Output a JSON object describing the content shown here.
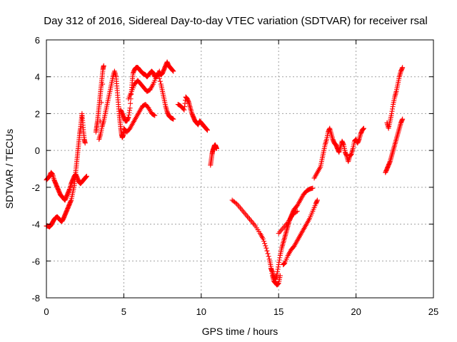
{
  "chart_data": {
    "type": "scatter",
    "title": "Day 312 of 2016, Sidereal Day-to-day VTEC variation (SDTVAR) for receiver rsal",
    "xlabel": "GPS time / hours",
    "ylabel": "SDTVAR / TECUs",
    "xlim": [
      0,
      25
    ],
    "ylim": [
      -8,
      6
    ],
    "xticks": [
      0,
      5,
      10,
      15,
      20,
      25
    ],
    "yticks": [
      -8,
      -6,
      -4,
      -2,
      0,
      2,
      4,
      6
    ],
    "grid": true,
    "marker": "plus",
    "color": "#ff0000",
    "series": [
      {
        "points": [
          [
            0.0,
            -1.6
          ],
          [
            0.1,
            -1.5
          ],
          [
            0.2,
            -1.4
          ],
          [
            0.3,
            -1.2
          ],
          [
            0.4,
            -1.3
          ],
          [
            0.5,
            -1.6
          ],
          [
            0.6,
            -1.8
          ],
          [
            0.7,
            -2.0
          ],
          [
            0.8,
            -2.2
          ],
          [
            0.9,
            -2.4
          ],
          [
            1.0,
            -2.5
          ],
          [
            1.1,
            -2.6
          ],
          [
            1.2,
            -2.7
          ],
          [
            1.3,
            -2.5
          ],
          [
            1.4,
            -2.3
          ],
          [
            1.5,
            -2.1
          ],
          [
            1.6,
            -1.8
          ],
          [
            1.7,
            -1.6
          ],
          [
            1.8,
            -1.4
          ],
          [
            1.9,
            -1.3
          ],
          [
            2.0,
            -1.5
          ],
          [
            2.1,
            -1.7
          ],
          [
            2.2,
            -1.8
          ],
          [
            2.3,
            -1.7
          ],
          [
            2.4,
            -1.6
          ],
          [
            2.5,
            -1.5
          ],
          [
            2.6,
            -1.4
          ]
        ]
      },
      {
        "points": [
          [
            0.0,
            -4.1
          ],
          [
            0.1,
            -4.1
          ],
          [
            0.2,
            -4.15
          ],
          [
            0.3,
            -4.05
          ],
          [
            0.4,
            -3.9
          ],
          [
            0.5,
            -3.75
          ],
          [
            0.6,
            -3.65
          ],
          [
            0.7,
            -3.6
          ],
          [
            0.8,
            -3.7
          ],
          [
            0.9,
            -3.8
          ],
          [
            1.0,
            -3.85
          ],
          [
            1.1,
            -3.7
          ],
          [
            1.2,
            -3.5
          ],
          [
            1.3,
            -3.3
          ],
          [
            1.4,
            -3.1
          ],
          [
            1.5,
            -2.9
          ],
          [
            1.6,
            -2.7
          ],
          [
            1.7,
            -2.3
          ],
          [
            1.8,
            -1.9
          ],
          [
            1.85,
            -1.5
          ],
          [
            1.9,
            -1.1
          ],
          [
            1.95,
            -0.7
          ],
          [
            2.0,
            -0.3
          ],
          [
            2.05,
            0.1
          ],
          [
            2.1,
            0.5
          ],
          [
            2.15,
            0.9
          ],
          [
            2.2,
            1.2
          ],
          [
            2.25,
            1.6
          ],
          [
            2.3,
            2.0
          ],
          [
            2.35,
            1.5
          ],
          [
            2.4,
            1.0
          ],
          [
            2.45,
            0.6
          ],
          [
            2.5,
            0.4
          ]
        ]
      },
      {
        "points": [
          [
            3.2,
            1.0
          ],
          [
            3.25,
            1.3
          ],
          [
            3.3,
            1.6
          ],
          [
            3.35,
            2.0
          ],
          [
            3.4,
            2.4
          ],
          [
            3.45,
            2.8
          ],
          [
            3.5,
            3.2
          ],
          [
            3.55,
            3.6
          ],
          [
            3.6,
            4.0
          ],
          [
            3.65,
            4.4
          ],
          [
            3.7,
            4.6
          ],
          [
            3.4,
            0.6
          ],
          [
            3.5,
            0.9
          ],
          [
            3.6,
            1.3
          ],
          [
            3.7,
            1.6
          ],
          [
            3.8,
            2.0
          ],
          [
            3.9,
            2.4
          ],
          [
            4.0,
            2.8
          ],
          [
            4.1,
            3.2
          ],
          [
            4.2,
            3.6
          ],
          [
            4.3,
            4.0
          ],
          [
            4.4,
            4.3
          ],
          [
            4.5,
            4.0
          ],
          [
            4.55,
            3.5
          ],
          [
            4.6,
            3.0
          ],
          [
            4.65,
            2.5
          ],
          [
            4.7,
            2.0
          ],
          [
            4.75,
            1.6
          ],
          [
            4.8,
            1.2
          ],
          [
            4.85,
            0.9
          ],
          [
            4.9,
            0.7
          ],
          [
            4.95,
            0.8
          ],
          [
            5.0,
            1.0
          ]
        ]
      },
      {
        "points": [
          [
            4.8,
            2.2
          ],
          [
            4.9,
            2.0
          ],
          [
            5.0,
            1.8
          ],
          [
            5.1,
            1.6
          ],
          [
            5.2,
            1.6
          ],
          [
            5.3,
            1.8
          ],
          [
            5.4,
            2.3
          ],
          [
            5.5,
            3.3
          ],
          [
            5.55,
            3.8
          ],
          [
            5.6,
            4.2
          ],
          [
            5.7,
            4.4
          ],
          [
            5.8,
            4.5
          ],
          [
            5.9,
            4.5
          ],
          [
            6.0,
            4.4
          ],
          [
            6.1,
            4.3
          ],
          [
            6.2,
            4.2
          ],
          [
            6.3,
            4.15
          ],
          [
            6.4,
            4.1
          ],
          [
            6.5,
            4.0
          ],
          [
            6.6,
            4.1
          ],
          [
            6.7,
            4.2
          ],
          [
            6.8,
            4.3
          ],
          [
            6.9,
            4.2
          ],
          [
            7.0,
            4.0
          ],
          [
            7.1,
            4.0
          ],
          [
            7.2,
            4.1
          ],
          [
            7.3,
            4.2
          ],
          [
            7.4,
            4.1
          ],
          [
            7.5,
            4.2
          ],
          [
            7.6,
            4.4
          ],
          [
            7.7,
            4.6
          ],
          [
            7.8,
            4.8
          ],
          [
            7.9,
            4.6
          ],
          [
            8.0,
            4.5
          ],
          [
            8.1,
            4.4
          ],
          [
            8.2,
            4.3
          ]
        ]
      },
      {
        "points": [
          [
            5.0,
            1.2
          ],
          [
            5.2,
            1.0
          ],
          [
            5.4,
            1.2
          ],
          [
            5.6,
            1.5
          ],
          [
            5.8,
            1.8
          ],
          [
            6.0,
            2.1
          ],
          [
            6.2,
            2.4
          ],
          [
            6.4,
            2.5
          ],
          [
            6.6,
            2.3
          ],
          [
            6.8,
            2.0
          ],
          [
            7.0,
            1.9
          ]
        ]
      },
      {
        "points": [
          [
            5.3,
            2.8
          ],
          [
            5.5,
            3.2
          ],
          [
            5.7,
            3.6
          ],
          [
            5.9,
            3.8
          ],
          [
            6.1,
            3.6
          ],
          [
            6.3,
            3.4
          ],
          [
            6.5,
            3.2
          ],
          [
            6.7,
            3.3
          ],
          [
            6.9,
            3.6
          ],
          [
            7.1,
            4.0
          ],
          [
            7.3,
            4.3
          ]
        ]
      },
      {
        "points": [
          [
            7.2,
            4.2
          ],
          [
            7.4,
            3.6
          ],
          [
            7.5,
            3.2
          ],
          [
            7.6,
            2.8
          ],
          [
            7.7,
            2.4
          ],
          [
            7.8,
            2.1
          ],
          [
            7.9,
            1.9
          ],
          [
            8.0,
            1.8
          ],
          [
            8.1,
            1.75
          ],
          [
            8.2,
            1.7
          ]
        ]
      },
      {
        "points": [
          [
            8.5,
            2.5
          ],
          [
            8.7,
            2.4
          ],
          [
            8.9,
            2.2
          ],
          [
            9.0,
            2.9
          ],
          [
            9.1,
            2.8
          ],
          [
            9.2,
            2.6
          ],
          [
            9.3,
            2.3
          ],
          [
            9.4,
            2.0
          ],
          [
            9.5,
            1.8
          ],
          [
            9.6,
            1.6
          ],
          [
            9.7,
            1.5
          ],
          [
            9.8,
            1.4
          ],
          [
            9.9,
            1.6
          ],
          [
            10.0,
            1.5
          ],
          [
            10.1,
            1.4
          ],
          [
            10.2,
            1.3
          ],
          [
            10.3,
            1.2
          ],
          [
            10.4,
            1.1
          ]
        ]
      },
      {
        "points": [
          [
            10.6,
            -0.8
          ],
          [
            10.65,
            -0.5
          ],
          [
            10.7,
            -0.2
          ],
          [
            10.75,
            0.0
          ],
          [
            10.8,
            0.1
          ],
          [
            10.85,
            0.25
          ],
          [
            10.9,
            0.3
          ],
          [
            10.95,
            0.2
          ],
          [
            11.0,
            0.1
          ]
        ]
      },
      {
        "points": [
          [
            12.0,
            -2.7
          ],
          [
            12.3,
            -2.9
          ],
          [
            12.6,
            -3.2
          ],
          [
            12.9,
            -3.5
          ],
          [
            13.2,
            -3.8
          ],
          [
            13.5,
            -4.1
          ],
          [
            13.8,
            -4.5
          ],
          [
            14.0,
            -4.8
          ],
          [
            14.2,
            -5.3
          ],
          [
            14.4,
            -5.9
          ],
          [
            14.5,
            -6.3
          ],
          [
            14.6,
            -6.8
          ],
          [
            14.7,
            -7.1
          ],
          [
            14.8,
            -7.2
          ],
          [
            14.9,
            -7.3
          ],
          [
            15.0,
            -7.2
          ],
          [
            15.1,
            -6.8
          ]
        ]
      },
      {
        "points": [
          [
            14.5,
            -6.4
          ],
          [
            14.6,
            -6.6
          ],
          [
            14.7,
            -6.9
          ],
          [
            14.8,
            -7.0
          ],
          [
            14.9,
            -6.7
          ],
          [
            15.0,
            -6.2
          ],
          [
            15.1,
            -5.7
          ],
          [
            15.2,
            -5.3
          ],
          [
            15.3,
            -5.0
          ],
          [
            15.4,
            -4.7
          ],
          [
            15.5,
            -4.4
          ],
          [
            15.6,
            -4.1
          ],
          [
            15.7,
            -3.8
          ],
          [
            15.8,
            -3.6
          ],
          [
            15.9,
            -3.4
          ],
          [
            16.0,
            -3.2
          ],
          [
            16.2,
            -3.0
          ],
          [
            16.4,
            -2.7
          ],
          [
            16.6,
            -2.4
          ],
          [
            16.8,
            -2.2
          ],
          [
            17.0,
            -2.1
          ],
          [
            17.2,
            -2.05
          ]
        ]
      },
      {
        "points": [
          [
            15.0,
            -4.5
          ],
          [
            15.3,
            -4.2
          ],
          [
            15.6,
            -3.9
          ],
          [
            15.9,
            -3.5
          ],
          [
            16.2,
            -3.3
          ]
        ]
      },
      {
        "points": [
          [
            15.3,
            -6.2
          ],
          [
            15.4,
            -6.1
          ],
          [
            15.6,
            -5.7
          ],
          [
            15.8,
            -5.4
          ],
          [
            16.0,
            -5.2
          ],
          [
            16.2,
            -4.9
          ],
          [
            16.4,
            -4.6
          ],
          [
            16.6,
            -4.3
          ],
          [
            16.8,
            -4.0
          ],
          [
            17.0,
            -3.7
          ],
          [
            17.2,
            -3.3
          ],
          [
            17.4,
            -2.9
          ],
          [
            17.5,
            -2.7
          ]
        ]
      },
      {
        "points": [
          [
            17.3,
            -1.5
          ],
          [
            17.5,
            -1.2
          ],
          [
            17.7,
            -0.9
          ],
          [
            17.8,
            -0.5
          ],
          [
            17.9,
            -0.1
          ],
          [
            18.0,
            0.3
          ],
          [
            18.1,
            0.6
          ],
          [
            18.2,
            1.0
          ],
          [
            18.3,
            1.2
          ],
          [
            18.4,
            0.9
          ],
          [
            18.5,
            0.6
          ],
          [
            18.6,
            0.4
          ],
          [
            18.7,
            0.3
          ],
          [
            18.8,
            0.1
          ],
          [
            18.9,
            -0.1
          ],
          [
            19.0,
            0.2
          ],
          [
            19.1,
            0.5
          ],
          [
            19.2,
            0.3
          ],
          [
            19.3,
            -0.1
          ],
          [
            19.4,
            -0.3
          ],
          [
            19.5,
            -0.6
          ],
          [
            19.6,
            -0.3
          ],
          [
            19.7,
            -0.2
          ],
          [
            19.8,
            0.1
          ],
          [
            19.9,
            0.5
          ],
          [
            20.0,
            0.6
          ],
          [
            20.1,
            0.4
          ],
          [
            20.2,
            0.6
          ],
          [
            20.3,
            0.9
          ],
          [
            20.4,
            1.1
          ],
          [
            20.5,
            1.2
          ]
        ]
      },
      {
        "points": [
          [
            21.9,
            -1.2
          ],
          [
            22.0,
            -1.0
          ],
          [
            22.1,
            -0.8
          ],
          [
            22.2,
            -0.6
          ],
          [
            22.3,
            -0.3
          ],
          [
            22.4,
            0.0
          ],
          [
            22.5,
            0.3
          ],
          [
            22.6,
            0.6
          ],
          [
            22.7,
            0.9
          ],
          [
            22.8,
            1.2
          ],
          [
            22.9,
            1.5
          ],
          [
            23.0,
            1.7
          ]
        ]
      },
      {
        "points": [
          [
            22.0,
            1.5
          ],
          [
            22.1,
            1.2
          ],
          [
            22.2,
            1.6
          ],
          [
            22.3,
            2.0
          ],
          [
            22.4,
            2.5
          ],
          [
            22.5,
            2.9
          ],
          [
            22.6,
            3.2
          ],
          [
            22.7,
            3.6
          ],
          [
            22.8,
            4.0
          ],
          [
            22.9,
            4.3
          ],
          [
            23.0,
            4.5
          ]
        ]
      }
    ]
  }
}
